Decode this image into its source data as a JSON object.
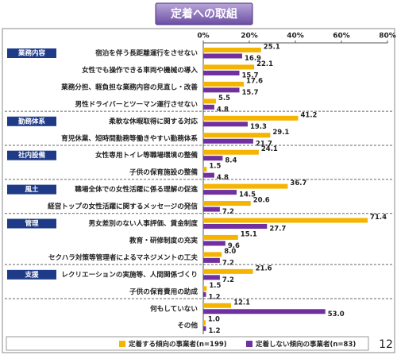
{
  "chart_data": {
    "type": "bar",
    "orientation": "horizontal",
    "title": "定着への取組",
    "categories": [
      "宿泊を伴う長距離運行をさせない",
      "女性でも操作できる車両や機械の導入",
      "業務分担、軽負担な業務内容の見直し・改善",
      "男性ドライバーとツーマン運行させない",
      "柔軟な休暇取得に関する対応",
      "育児休業、短時間勤務等働きやすい勤務体系",
      "女性専用トイレ等職場環境の整備",
      "子供の保育施設の整備",
      "職場全体での女性活躍に係る理解の促進",
      "経営トップの女性活躍に関するメッセージの発信",
      "男女差別のない人事評価、賃金制度",
      "教育・研修制度の充実",
      "セクハラ対策等管理者によるマネジメントの工夫",
      "レクリエーションの実施等、人間関係づくり",
      "子供の保育費用の助成",
      "何もしていない",
      "その他"
    ],
    "category_groups": [
      "業務内容",
      null,
      null,
      null,
      "勤務体系",
      null,
      "社内設備",
      null,
      "風土",
      null,
      "管理",
      null,
      null,
      "支援",
      null,
      null,
      null
    ],
    "series": [
      {
        "name": "定着する傾向の事業者(n=199)",
        "color": "#f5b400",
        "values": [
          25.1,
          22.1,
          17.6,
          5.5,
          41.2,
          29.1,
          24.1,
          1.5,
          36.7,
          20.6,
          71.4,
          15.1,
          8.0,
          21.6,
          1.5,
          12.1,
          1.0
        ],
        "value_labels": [
          "25.1",
          "22.1",
          "17.6",
          "5.5",
          "41.2",
          "29.1",
          "24.1",
          "1.5",
          "36.7",
          "20.6",
          "71.4",
          "15.1",
          "8.0",
          "21.6",
          "1.5",
          "12.1",
          "1.0"
        ]
      },
      {
        "name": "定着しない傾向の事業者(n=83)",
        "color": "#7030a0",
        "values": [
          16.9,
          15.7,
          15.7,
          4.8,
          19.3,
          21.7,
          8.4,
          4.8,
          14.5,
          7.2,
          27.7,
          9.6,
          7.2,
          7.2,
          1.2,
          53.0,
          1.2
        ],
        "value_labels": [
          "16.9",
          "15.7",
          "15.7",
          "4.8",
          "19.3",
          "21.7",
          "8.4",
          "4.8",
          "14.5",
          "7.2",
          "27.7",
          "9.6",
          "7.2",
          "7.2",
          "1.2",
          "53.0",
          "1.2"
        ]
      }
    ],
    "xlim": [
      0,
      80
    ],
    "xticks": [
      {
        "value": 0,
        "label": "0%"
      },
      {
        "value": 20,
        "label": "20%"
      },
      {
        "value": 40,
        "label": "40%"
      },
      {
        "value": 60,
        "label": "60%"
      },
      {
        "value": 80,
        "label": "80%"
      }
    ],
    "page_number": "12"
  }
}
